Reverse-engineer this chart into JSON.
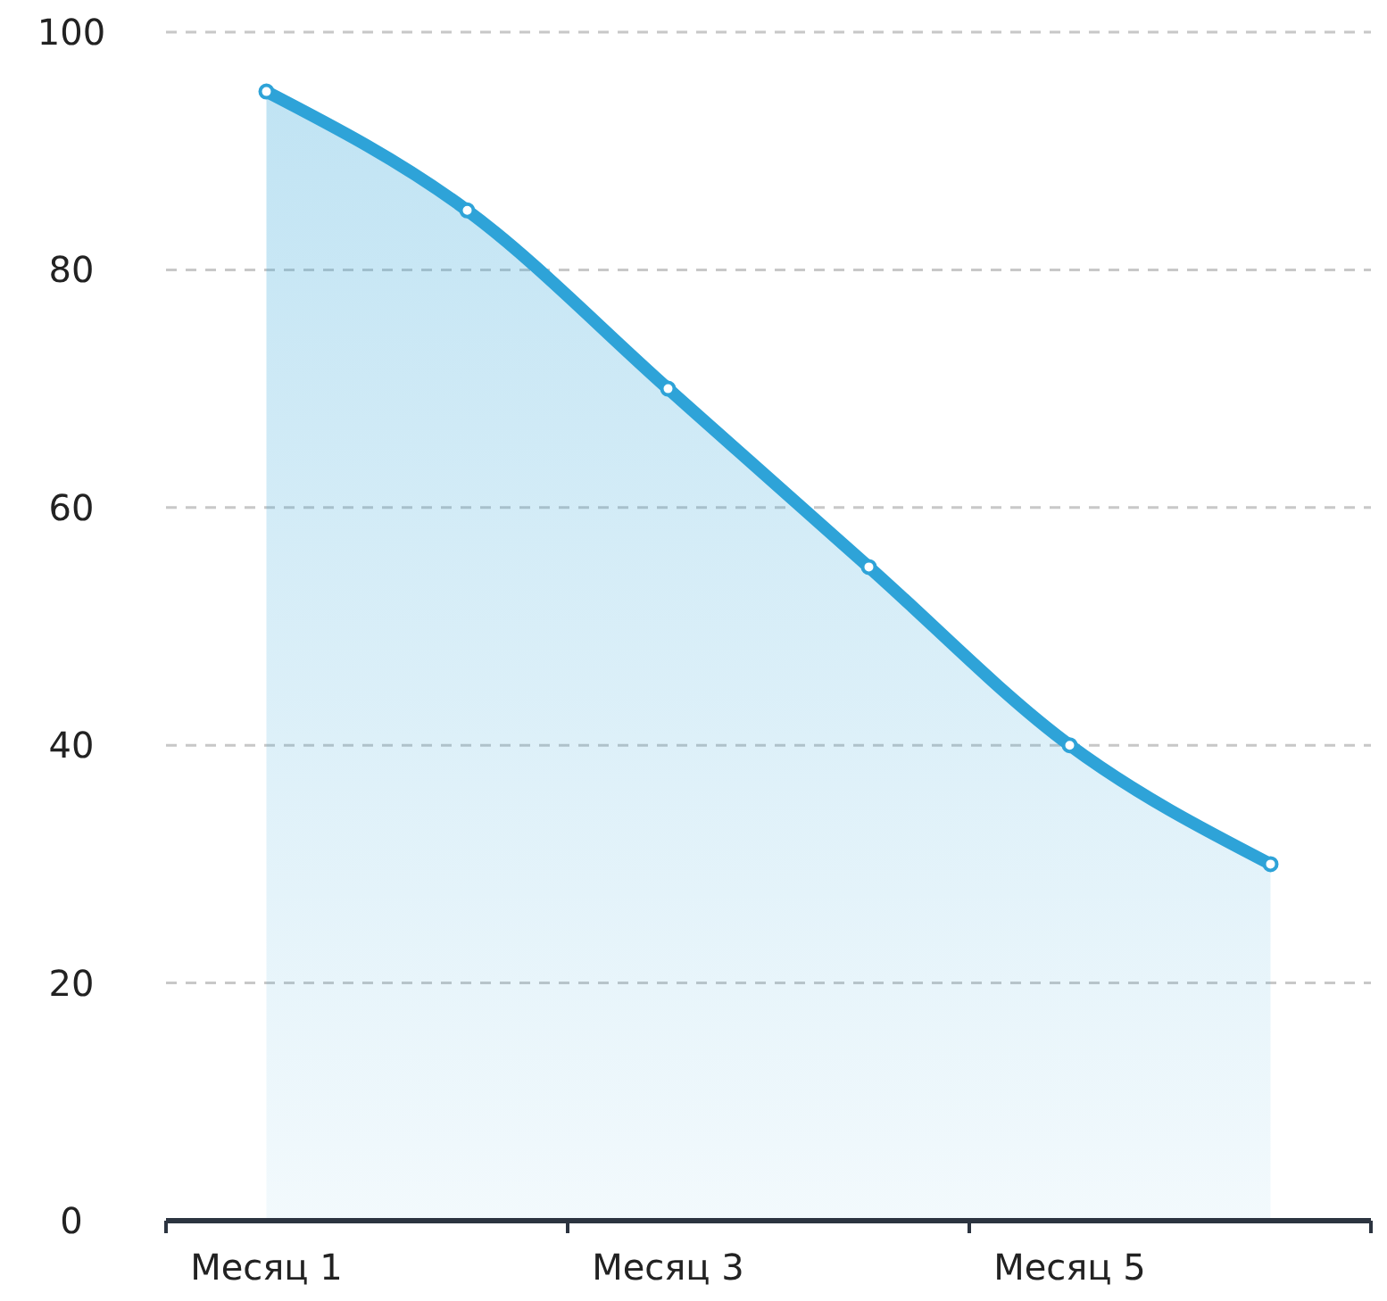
{
  "chart_data": {
    "type": "area",
    "categories": [
      "Месяц 1",
      null,
      "Месяц 3",
      null,
      "Месяц 5",
      null
    ],
    "series": [
      {
        "color": "#2ea3d8",
        "values": [
          95,
          85,
          70,
          55,
          40,
          30
        ]
      }
    ],
    "ylim": [
      0,
      100
    ],
    "yticks": [
      0,
      20,
      40,
      60,
      80,
      100
    ],
    "grid": "y",
    "marker": "circle",
    "line_style": "solid"
  }
}
